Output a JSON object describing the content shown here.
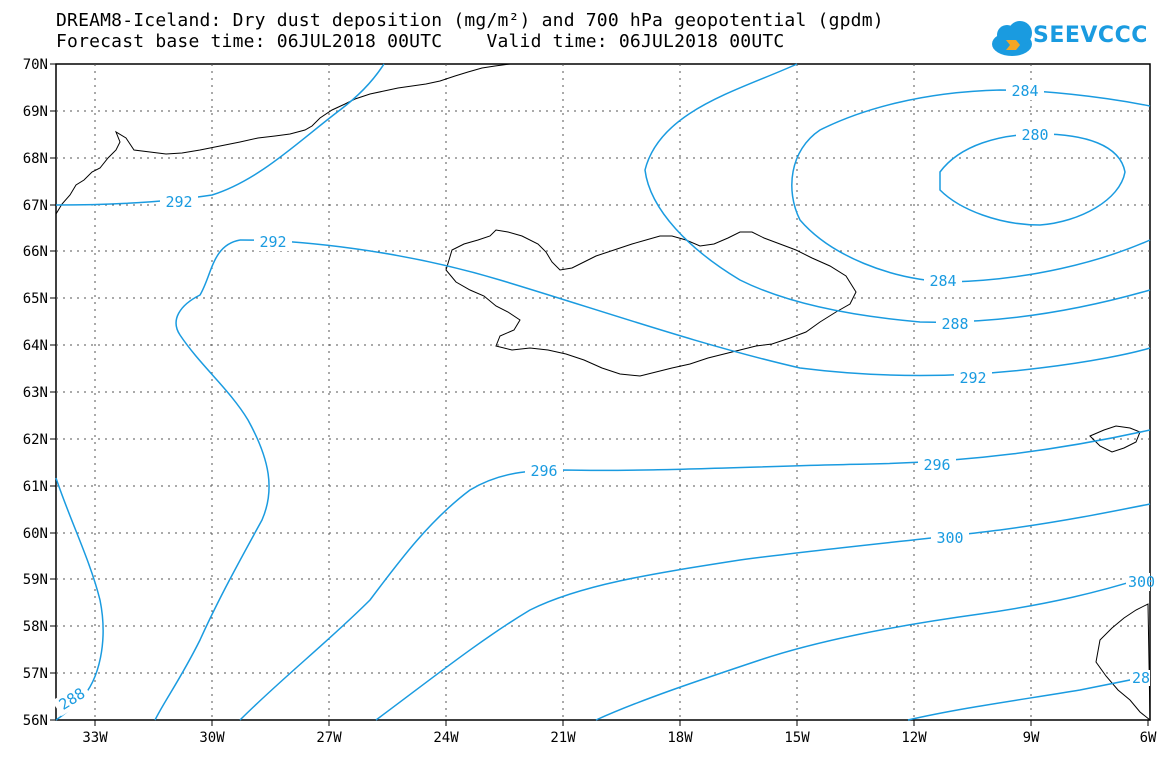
{
  "header": {
    "title_line1": "DREAM8-Iceland: Dry dust deposition (mg/m²) and 700 hPa geopotential (gpdm)",
    "title_line2": "Forecast base time: 06JUL2018 00UTC    Valid time: 06JUL2018 00UTC"
  },
  "logo": {
    "text": "SEEVCCC",
    "icon": "cloud-icon",
    "color": "#1a9be0"
  },
  "map": {
    "lon_range": [
      -34,
      -6
    ],
    "lat_range": [
      56,
      70
    ],
    "lon_labels": [
      "33W",
      "30W",
      "27W",
      "24W",
      "21W",
      "18W",
      "15W",
      "12W",
      "9W",
      "6W"
    ],
    "lat_labels": [
      "70N",
      "69N",
      "68N",
      "67N",
      "66N",
      "65N",
      "64N",
      "63N",
      "62N",
      "61N",
      "60N",
      "59N",
      "58N",
      "57N",
      "56N"
    ],
    "contour_color": "#1a9be0",
    "coastline_color": "#000000",
    "gridlines": "dotted",
    "contour_labels": [
      "292",
      "292",
      "284",
      "280",
      "284",
      "288",
      "292",
      "296",
      "296",
      "300",
      "300",
      "288",
      "28"
    ]
  }
}
